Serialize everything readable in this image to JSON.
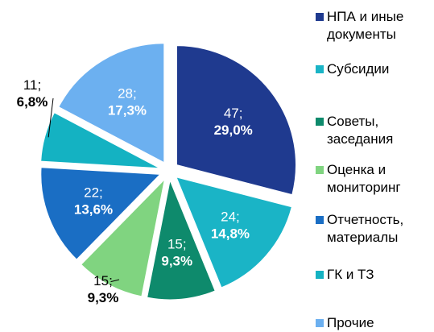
{
  "chart_data": {
    "type": "pie",
    "categories": [
      "НПА и иные документы",
      "Субсидии",
      "Советы, заседания",
      "Оценка и мониторинг",
      "Отчетность, материалы",
      "ГК и ТЗ",
      "Прочие"
    ],
    "values": [
      47,
      24,
      15,
      15,
      22,
      11,
      28
    ],
    "value_labels": [
      "47;",
      "24;",
      "15;",
      "15;",
      "22;",
      "11;",
      "28;"
    ],
    "percent_labels": [
      "29,0%",
      "14,8%",
      "9,3%",
      "9,3%",
      "13,6%",
      "6,8%",
      "17,3%"
    ],
    "colors": [
      "#1f3a8f",
      "#1ab4c6",
      "#0e8a6c",
      "#80d480",
      "#1a6ec4",
      "#14b2c2",
      "#6cb0f0"
    ],
    "legend": "right"
  }
}
